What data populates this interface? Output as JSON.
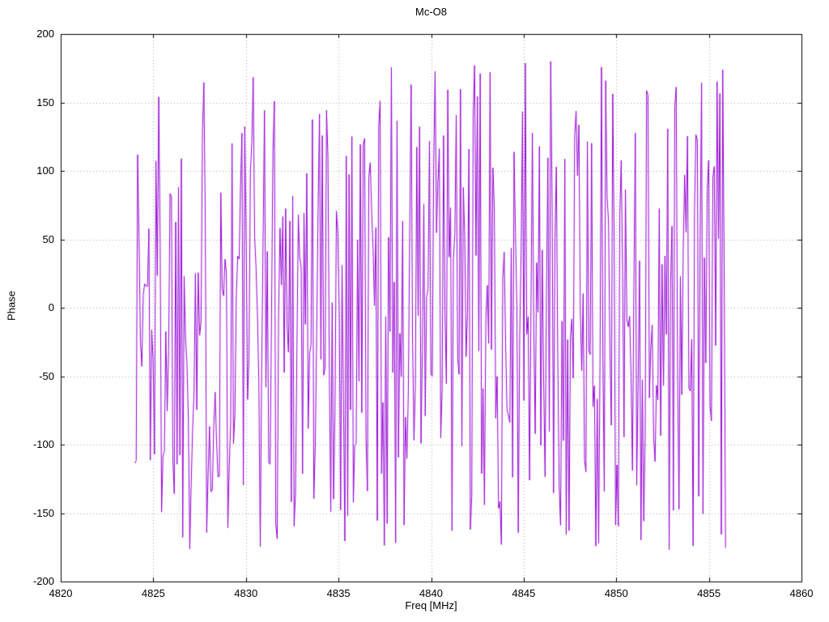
{
  "chart_data": {
    "type": "line",
    "title": "Mc-O8",
    "xlabel": "Freq [MHz]",
    "ylabel": "Phase",
    "xlim": [
      4820,
      4860
    ],
    "ylim": [
      -200,
      200
    ],
    "x_ticks": [
      4820,
      4825,
      4830,
      4835,
      4840,
      4845,
      4850,
      4855,
      4860
    ],
    "y_ticks": [
      -200,
      -150,
      -100,
      -50,
      0,
      50,
      100,
      150,
      200
    ],
    "grid": true,
    "grid_style": "dotted",
    "legend": "none",
    "series": [
      {
        "name": "phase",
        "color": "#9400D3",
        "style": "line",
        "x_start": 4824.0,
        "x_end": 4855.9,
        "n_points": 420,
        "y_min": -180,
        "y_max": 180,
        "y_distribution": "uniform wrapped phase (random-looking, fills -180..180 deg)",
        "seed": 1337
      }
    ],
    "colors": {
      "line": "#9400D3",
      "grid": "#a6a6a6",
      "border": "#000000",
      "background": "#ffffff",
      "text": "#000000"
    }
  }
}
